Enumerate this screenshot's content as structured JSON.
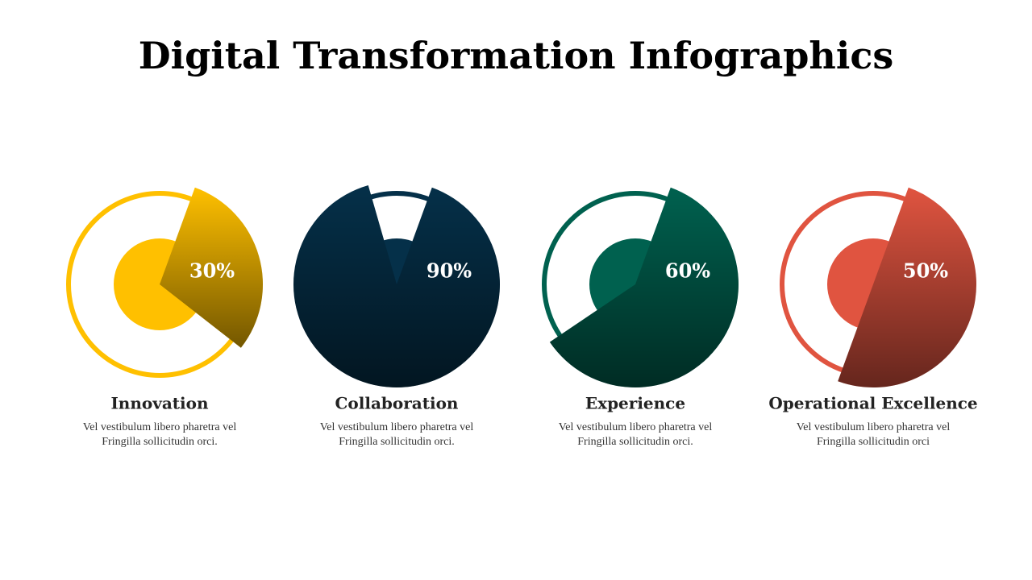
{
  "title": "Digital Transformation Infographics",
  "items": [
    {
      "name": "Innovation",
      "value": 30,
      "value_label": "30%",
      "color": "#ffc000",
      "description": [
        "Vel vestibulum libero pharetra vel",
        "Fringilla sollicitudin orci."
      ]
    },
    {
      "name": "Collaboration",
      "value": 90,
      "value_label": "90%",
      "color": "#053049",
      "description": [
        "Vel vestibulum libero pharetra vel",
        "Fringilla sollicitudin orci."
      ]
    },
    {
      "name": "Experience",
      "value": 60,
      "value_label": "60%",
      "color": "#00614f",
      "description": [
        "Vel vestibulum libero pharetra vel",
        "Fringilla sollicitudin orci."
      ]
    },
    {
      "name": "Operational Excellence",
      "value": 50,
      "value_label": "50%",
      "color": "#e05440",
      "description": [
        "Vel vestibulum libero pharetra vel",
        "Fringilla sollicitudin orci"
      ]
    }
  ]
}
